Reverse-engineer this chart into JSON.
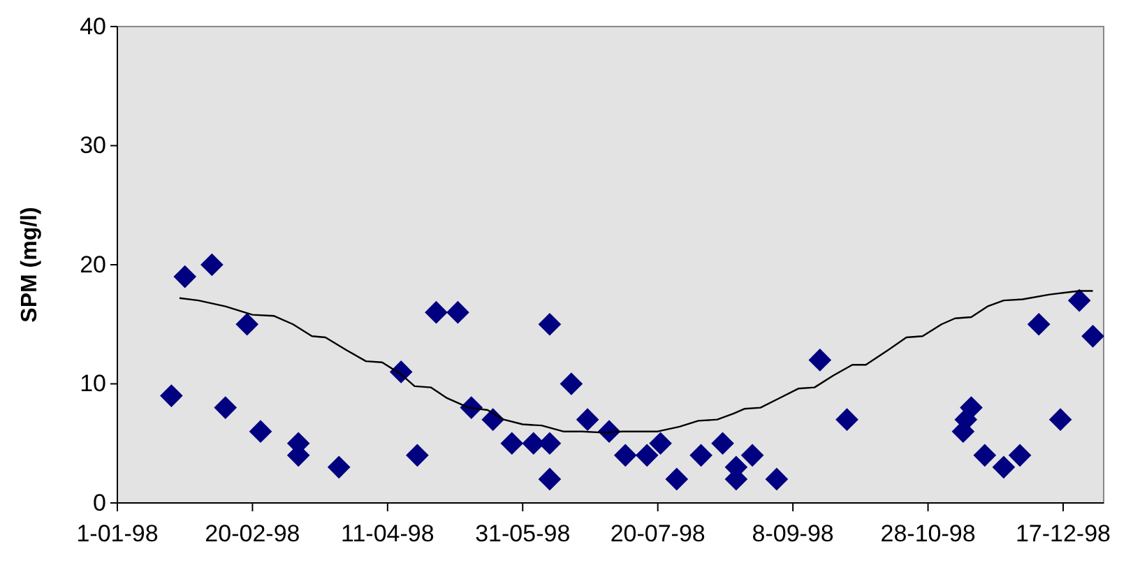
{
  "chart_data": {
    "type": "scatter",
    "ylabel": "SPM (mg/l)",
    "xlim": [
      "1998-01-01",
      "1999-01-01"
    ],
    "ylim": [
      0,
      40
    ],
    "yticks": [
      0,
      10,
      20,
      30,
      40
    ],
    "xticks": [
      {
        "value": "1998-01-01",
        "label": "1-01-98"
      },
      {
        "value": "1998-02-20",
        "label": "20-02-98"
      },
      {
        "value": "1998-04-11",
        "label": "11-04-98"
      },
      {
        "value": "1998-05-31",
        "label": "31-05-98"
      },
      {
        "value": "1998-07-20",
        "label": "20-07-98"
      },
      {
        "value": "1998-09-08",
        "label": "8-09-98"
      },
      {
        "value": "1998-10-28",
        "label": "28-10-98"
      },
      {
        "value": "1998-12-17",
        "label": "17-12-98"
      }
    ],
    "grid": false,
    "series": [
      {
        "color": "#000080",
        "marker": "diamond",
        "x": [
          "1998-01-21",
          "1998-01-26",
          "1998-02-05",
          "1998-02-10",
          "1998-02-18",
          "1998-02-23",
          "1998-03-09",
          "1998-03-09",
          "1998-03-24",
          "1998-04-16",
          "1998-04-22",
          "1998-04-29",
          "1998-05-07",
          "1998-05-12",
          "1998-05-20",
          "1998-05-27",
          "1998-06-04",
          "1998-06-10",
          "1998-06-10",
          "1998-06-10",
          "1998-06-18",
          "1998-06-24",
          "1998-07-02",
          "1998-07-08",
          "1998-07-16",
          "1998-07-21",
          "1998-07-27",
          "1998-08-05",
          "1998-08-13",
          "1998-08-18",
          "1998-08-18",
          "1998-08-24",
          "1998-09-02",
          "1998-09-18",
          "1998-09-28",
          "1998-11-10",
          "1998-11-11",
          "1998-11-13",
          "1998-11-18",
          "1998-11-25",
          "1998-12-01",
          "1998-12-08",
          "1998-12-16",
          "1998-12-23",
          "1998-12-28"
        ],
        "values": [
          9,
          19,
          20,
          8,
          15,
          6,
          5,
          4,
          3,
          11,
          4,
          16,
          16,
          8,
          7,
          5,
          5,
          15,
          5,
          2,
          10,
          7,
          6,
          4,
          4,
          5,
          2,
          4,
          5,
          3,
          2,
          4,
          2,
          12,
          7,
          6,
          7,
          8,
          4,
          3,
          4,
          15,
          7,
          17,
          14
        ]
      },
      {
        "type": "line",
        "color": "#000000",
        "line_style": "solid",
        "marker": "none",
        "x": [
          "1998-01-24",
          "1998-01-31",
          "1998-02-10",
          "1998-02-20",
          "1998-02-28",
          "1998-03-07",
          "1998-03-14",
          "1998-03-19",
          "1998-03-27",
          "1998-04-03",
          "1998-04-09",
          "1998-04-16",
          "1998-04-21",
          "1998-04-27",
          "1998-05-03",
          "1998-05-11",
          "1998-05-18",
          "1998-05-24",
          "1998-05-31",
          "1998-06-07",
          "1998-06-15",
          "1998-06-22",
          "1998-06-30",
          "1998-07-07",
          "1998-07-20",
          "1998-07-28",
          "1998-08-04",
          "1998-08-11",
          "1998-08-17",
          "1998-08-21",
          "1998-08-27",
          "1998-09-03",
          "1998-09-10",
          "1998-09-16",
          "1998-09-23",
          "1998-09-30",
          "1998-10-05",
          "1998-10-13",
          "1998-10-20",
          "1998-10-26",
          "1998-11-02",
          "1998-11-07",
          "1998-11-13",
          "1998-11-19",
          "1998-11-25",
          "1998-12-02",
          "1998-12-12",
          "1998-12-23",
          "1998-12-28"
        ],
        "values": [
          17.2,
          17,
          16.5,
          15.8,
          15.7,
          15,
          14,
          13.9,
          12.8,
          11.9,
          11.8,
          10.8,
          9.8,
          9.7,
          8.8,
          8,
          7.8,
          7,
          6.6,
          6.5,
          6,
          6,
          5.9,
          6,
          6,
          6.4,
          6.9,
          7,
          7.5,
          7.9,
          8,
          8.8,
          9.6,
          9.7,
          10.7,
          11.6,
          11.6,
          12.8,
          13.9,
          14,
          15,
          15.5,
          15.6,
          16.5,
          17,
          17.1,
          17.5,
          17.8,
          17.8
        ]
      }
    ]
  }
}
